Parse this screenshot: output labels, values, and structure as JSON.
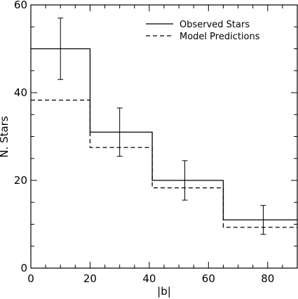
{
  "chart_data": {
    "type": "line",
    "style": "step-histogram",
    "title": "",
    "xlabel": "|b|",
    "ylabel": "N. Stars",
    "xlim": [
      0,
      90
    ],
    "ylim": [
      0,
      60
    ],
    "x_ticks": [
      0,
      20,
      40,
      60,
      80
    ],
    "y_ticks": [
      0,
      20,
      40,
      60
    ],
    "grid": false,
    "legend_position": "top-right",
    "series": [
      {
        "name": "Observed Stars",
        "line_style": "solid",
        "bins": [
          {
            "x0": 0,
            "x1": 20,
            "y": 50
          },
          {
            "x0": 20,
            "x1": 41,
            "y": 31
          },
          {
            "x0": 41,
            "x1": 65,
            "y": 20
          },
          {
            "x0": 65,
            "x1": 90,
            "y": 11
          }
        ],
        "error_bars": [
          {
            "x": 10,
            "y": 50,
            "low": 43,
            "high": 57
          },
          {
            "x": 30,
            "y": 31,
            "low": 25.5,
            "high": 36.5
          },
          {
            "x": 52,
            "y": 20,
            "low": 15.5,
            "high": 24.5
          },
          {
            "x": 78.5,
            "y": 11,
            "low": 7.7,
            "high": 14.3
          }
        ]
      },
      {
        "name": "Model Predictions",
        "line_style": "dashed",
        "bins": [
          {
            "x0": 0,
            "x1": 20,
            "y": 38.3
          },
          {
            "x0": 20,
            "x1": 41,
            "y": 27.5
          },
          {
            "x0": 41,
            "x1": 65,
            "y": 18.3
          },
          {
            "x0": 65,
            "x1": 90,
            "y": 9.3
          }
        ]
      }
    ]
  }
}
